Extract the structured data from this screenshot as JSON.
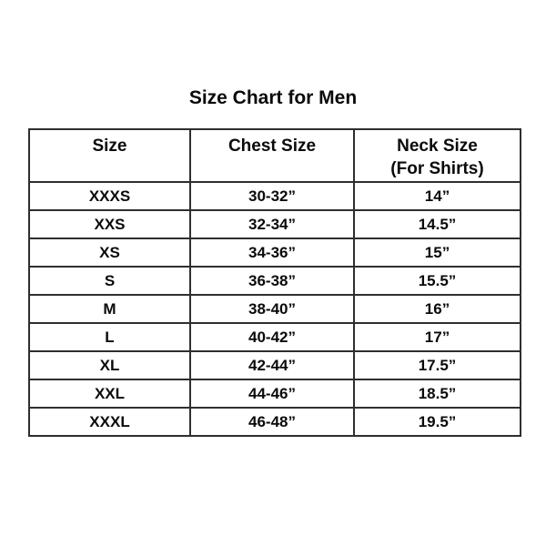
{
  "title": "Size Chart for Men",
  "colors": {
    "background": "#ffffff",
    "text": "#0a0a0a",
    "border": "#2e2e2e"
  },
  "table": {
    "headers": [
      {
        "label": "Size",
        "sublabel": ""
      },
      {
        "label": "Chest Size",
        "sublabel": ""
      },
      {
        "label": "Neck Size",
        "sublabel": "(For Shirts)"
      }
    ]
  },
  "chart_data": {
    "type": "table",
    "title": "Size Chart for Men",
    "columns": [
      "Size",
      "Chest Size",
      "Neck Size (For Shirts)"
    ],
    "rows": [
      [
        "XXXS",
        "30-32”",
        "14”"
      ],
      [
        "XXS",
        "32-34”",
        "14.5”"
      ],
      [
        "XS",
        "34-36”",
        "15”"
      ],
      [
        "S",
        "36-38”",
        "15.5”"
      ],
      [
        "M",
        "38-40”",
        "16”"
      ],
      [
        "L",
        "40-42”",
        "17”"
      ],
      [
        "XL",
        "42-44”",
        "17.5”"
      ],
      [
        "XXL",
        "44-46”",
        "18.5”"
      ],
      [
        "XXXL",
        "46-48”",
        "19.5”"
      ]
    ]
  }
}
